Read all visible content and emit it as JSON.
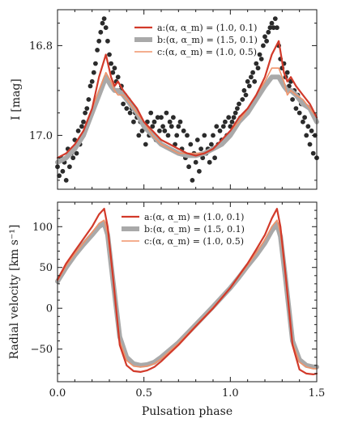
{
  "chart_data": [
    {
      "type": "scatter",
      "panel": "top",
      "xlabel": "",
      "ylabel": "I [mag]",
      "y_inverted": true,
      "xlim": [
        0.0,
        1.5
      ],
      "ylim": [
        16.72,
        17.12
      ],
      "x_ticks": [
        0.0,
        0.5,
        1.0,
        1.5
      ],
      "y_ticks": [
        16.8,
        17.0
      ],
      "y_tick_labels": [
        "16.8",
        "17.0"
      ],
      "legend_position": "top-right",
      "colors": {
        "a": "#d23a2a",
        "b": "#a9a9a9",
        "c": "#f0936a",
        "points": "#2b2b2b"
      },
      "observations": {
        "name": "",
        "x": [
          0.0,
          0.01,
          0.02,
          0.03,
          0.04,
          0.05,
          0.06,
          0.07,
          0.08,
          0.09,
          0.1,
          0.11,
          0.12,
          0.13,
          0.14,
          0.15,
          0.16,
          0.17,
          0.18,
          0.19,
          0.2,
          0.21,
          0.22,
          0.23,
          0.24,
          0.25,
          0.26,
          0.27,
          0.28,
          0.29,
          0.3,
          0.31,
          0.32,
          0.33,
          0.34,
          0.35,
          0.36,
          0.37,
          0.38,
          0.39,
          0.4,
          0.41,
          0.42,
          0.43,
          0.44,
          0.45,
          0.46,
          0.47,
          0.48,
          0.49,
          0.5,
          0.51,
          0.52,
          0.53,
          0.54,
          0.55,
          0.56,
          0.57,
          0.58,
          0.59,
          0.6,
          0.61,
          0.62,
          0.63,
          0.64,
          0.65,
          0.66,
          0.67,
          0.68,
          0.69,
          0.7,
          0.71,
          0.72,
          0.73,
          0.74,
          0.75,
          0.76,
          0.77,
          0.78,
          0.79,
          0.8,
          0.81,
          0.82,
          0.83,
          0.84,
          0.85,
          0.86,
          0.87,
          0.88,
          0.89,
          0.9,
          0.91,
          0.92,
          0.93,
          0.94,
          0.95,
          0.96,
          0.97,
          0.98,
          0.99,
          1.0,
          1.01,
          1.02,
          1.03,
          1.04,
          1.05,
          1.06,
          1.07,
          1.08,
          1.09,
          1.1,
          1.11,
          1.12,
          1.13,
          1.14,
          1.15,
          1.16,
          1.17,
          1.18,
          1.19,
          1.2,
          1.21,
          1.22,
          1.23,
          1.24,
          1.25,
          1.26,
          1.27,
          1.28,
          1.29,
          1.3,
          1.31,
          1.32,
          1.33,
          1.34,
          1.35,
          1.36,
          1.37,
          1.38,
          1.39,
          1.4,
          1.41,
          1.42,
          1.43,
          1.44,
          1.45,
          1.46,
          1.47,
          1.48,
          1.49,
          1.5
        ],
        "y": [
          17.07,
          17.09,
          17.05,
          17.08,
          17.06,
          17.1,
          17.03,
          17.07,
          17.04,
          17.05,
          17.01,
          17.04,
          16.99,
          17.02,
          16.98,
          16.97,
          16.95,
          16.94,
          16.92,
          16.89,
          16.88,
          16.86,
          16.84,
          16.81,
          16.79,
          16.77,
          16.75,
          16.74,
          16.76,
          16.79,
          16.82,
          16.84,
          16.86,
          16.85,
          16.88,
          16.87,
          16.9,
          16.89,
          16.93,
          16.91,
          16.94,
          16.92,
          16.95,
          16.94,
          16.97,
          16.95,
          16.96,
          17.0,
          16.97,
          16.99,
          16.98,
          17.02,
          16.97,
          17.0,
          16.95,
          16.98,
          16.97,
          17.01,
          16.96,
          16.99,
          16.96,
          16.98,
          16.99,
          16.95,
          17.0,
          16.97,
          16.98,
          16.96,
          17.02,
          17.0,
          16.98,
          16.97,
          17.03,
          16.99,
          17.05,
          17.0,
          17.07,
          17.02,
          17.1,
          17.04,
          17.06,
          17.01,
          17.08,
          17.03,
          17.05,
          17.0,
          17.04,
          17.03,
          17.06,
          17.02,
          17.0,
          17.05,
          16.98,
          17.02,
          16.99,
          17.01,
          16.98,
          16.97,
          17.0,
          16.96,
          16.98,
          16.97,
          16.96,
          16.95,
          16.94,
          16.93,
          16.96,
          16.92,
          16.9,
          16.91,
          16.88,
          16.89,
          16.87,
          16.86,
          16.88,
          16.84,
          16.85,
          16.82,
          16.83,
          16.8,
          16.78,
          16.79,
          16.77,
          16.76,
          16.75,
          16.76,
          16.74,
          16.76,
          16.8,
          16.83,
          16.85,
          16.84,
          16.87,
          16.86,
          16.89,
          16.88,
          16.92,
          16.9,
          16.94,
          16.91,
          16.95,
          16.93,
          16.97,
          16.96,
          17.0,
          16.98,
          17.02,
          16.99,
          17.04,
          17.0,
          17.05
        ]
      },
      "series": [
        {
          "name": "a:(α, α_m) = (1.0, 0.1)",
          "color": "#d23a2a",
          "x": [
            0.0,
            0.05,
            0.1,
            0.15,
            0.2,
            0.24,
            0.28,
            0.31,
            0.33,
            0.35,
            0.38,
            0.42,
            0.46,
            0.5,
            0.55,
            0.6,
            0.65,
            0.7,
            0.75,
            0.8,
            0.85,
            0.9,
            0.95,
            1.0,
            1.05,
            1.1,
            1.15,
            1.2,
            1.24,
            1.28,
            1.31,
            1.33,
            1.35,
            1.38,
            1.42,
            1.46,
            1.5
          ],
          "y": [
            17.05,
            17.04,
            17.02,
            16.99,
            16.94,
            16.87,
            16.82,
            16.87,
            16.89,
            16.88,
            16.9,
            16.92,
            16.94,
            16.97,
            16.99,
            17.01,
            17.02,
            17.03,
            17.04,
            17.045,
            17.04,
            17.03,
            17.01,
            16.99,
            16.96,
            16.94,
            16.91,
            16.87,
            16.82,
            16.79,
            16.86,
            16.88,
            16.87,
            16.89,
            16.91,
            16.93,
            16.96
          ]
        },
        {
          "name": "b:(α, α_m) = (1.5, 0.1)",
          "color": "#a9a9a9",
          "x": [
            0.0,
            0.05,
            0.1,
            0.15,
            0.2,
            0.24,
            0.28,
            0.31,
            0.33,
            0.35,
            0.38,
            0.42,
            0.46,
            0.5,
            0.55,
            0.6,
            0.65,
            0.7,
            0.75,
            0.8,
            0.85,
            0.9,
            0.95,
            1.0,
            1.05,
            1.1,
            1.15,
            1.2,
            1.24,
            1.28,
            1.31,
            1.33,
            1.35,
            1.38,
            1.42,
            1.46,
            1.5
          ],
          "y": [
            17.06,
            17.05,
            17.03,
            17.0,
            16.95,
            16.91,
            16.87,
            16.89,
            16.9,
            16.9,
            16.91,
            16.93,
            16.95,
            16.98,
            17.0,
            17.02,
            17.03,
            17.04,
            17.045,
            17.045,
            17.04,
            17.03,
            17.02,
            17.0,
            16.97,
            16.95,
            16.92,
            16.89,
            16.87,
            16.87,
            16.89,
            16.9,
            16.9,
            16.91,
            16.93,
            16.94,
            16.97
          ]
        },
        {
          "name": "c:(α, α_m) = (1.0, 0.5)",
          "color": "#f0936a",
          "x": [
            0.0,
            0.05,
            0.1,
            0.15,
            0.2,
            0.24,
            0.28,
            0.31,
            0.33,
            0.35,
            0.38,
            0.42,
            0.46,
            0.5,
            0.55,
            0.6,
            0.65,
            0.7,
            0.75,
            0.8,
            0.85,
            0.9,
            0.95,
            1.0,
            1.05,
            1.1,
            1.15,
            1.2,
            1.24,
            1.28,
            1.31,
            1.33,
            1.35,
            1.38,
            1.42,
            1.46,
            1.5
          ],
          "y": [
            17.05,
            17.04,
            17.02,
            16.99,
            16.94,
            16.9,
            16.86,
            16.88,
            16.9,
            16.91,
            16.91,
            16.93,
            16.95,
            16.97,
            17.0,
            17.02,
            17.03,
            17.04,
            17.04,
            17.04,
            17.04,
            17.03,
            17.01,
            16.99,
            16.97,
            16.94,
            16.91,
            16.88,
            16.85,
            16.85,
            16.88,
            16.91,
            16.9,
            16.91,
            16.92,
            16.94,
            16.96
          ]
        }
      ]
    },
    {
      "type": "line",
      "panel": "bottom",
      "xlabel": "Pulsation phase",
      "ylabel": "Radial velocity [km s⁻¹]",
      "xlim": [
        0.0,
        1.5
      ],
      "ylim": [
        -90,
        130
      ],
      "x_ticks": [
        0.0,
        0.5,
        1.0,
        1.5
      ],
      "x_tick_labels": [
        "0.0",
        "0.5",
        "1.0",
        "1.5"
      ],
      "y_ticks": [
        -50,
        0,
        50,
        100
      ],
      "y_tick_labels": [
        "−50",
        "0",
        "50",
        "100"
      ],
      "legend_position": "top-right",
      "series": [
        {
          "name": "a:(α, α_m) = (1.0, 0.1)",
          "color": "#d23a2a",
          "x": [
            0.0,
            0.05,
            0.1,
            0.15,
            0.2,
            0.24,
            0.27,
            0.29,
            0.32,
            0.36,
            0.4,
            0.44,
            0.48,
            0.52,
            0.56,
            0.6,
            0.7,
            0.8,
            0.9,
            1.0,
            1.05,
            1.1,
            1.15,
            1.2,
            1.24,
            1.27,
            1.29,
            1.32,
            1.36,
            1.4,
            1.44,
            1.48,
            1.5
          ],
          "y": [
            35,
            55,
            70,
            85,
            100,
            115,
            122,
            100,
            40,
            -45,
            -70,
            -77,
            -78,
            -76,
            -72,
            -65,
            -45,
            -22,
            0,
            25,
            40,
            55,
            72,
            90,
            110,
            122,
            100,
            40,
            -45,
            -75,
            -80,
            -81,
            -80
          ]
        },
        {
          "name": "b:(α, α_m) = (1.5, 0.1)",
          "color": "#a9a9a9",
          "x": [
            0.0,
            0.05,
            0.1,
            0.15,
            0.2,
            0.24,
            0.27,
            0.29,
            0.32,
            0.36,
            0.4,
            0.44,
            0.48,
            0.52,
            0.56,
            0.6,
            0.7,
            0.8,
            0.9,
            1.0,
            1.05,
            1.1,
            1.15,
            1.2,
            1.24,
            1.27,
            1.29,
            1.32,
            1.36,
            1.4,
            1.44,
            1.48,
            1.5
          ],
          "y": [
            33,
            50,
            65,
            78,
            90,
            100,
            104,
            90,
            35,
            -35,
            -60,
            -68,
            -70,
            -69,
            -66,
            -60,
            -42,
            -20,
            2,
            25,
            38,
            52,
            65,
            80,
            95,
            103,
            88,
            35,
            -40,
            -63,
            -70,
            -72,
            -72
          ]
        },
        {
          "name": "c:(α, α_m) = (1.0, 0.5)",
          "color": "#f0936a",
          "x": [
            0.0,
            0.05,
            0.1,
            0.15,
            0.2,
            0.24,
            0.27,
            0.29,
            0.32,
            0.36,
            0.4,
            0.44,
            0.48,
            0.52,
            0.56,
            0.6,
            0.7,
            0.8,
            0.9,
            1.0,
            1.05,
            1.1,
            1.15,
            1.2,
            1.24,
            1.27,
            1.29,
            1.32,
            1.36,
            1.4,
            1.44,
            1.48,
            1.5
          ],
          "y": [
            34,
            52,
            67,
            80,
            93,
            104,
            108,
            92,
            38,
            -40,
            -64,
            -71,
            -72,
            -71,
            -68,
            -62,
            -43,
            -21,
            1,
            25,
            39,
            53,
            68,
            84,
            100,
            108,
            92,
            38,
            -42,
            -66,
            -72,
            -74,
            -74
          ]
        }
      ]
    }
  ],
  "legend": {
    "a_label": "a:(α, α_m) = (1.0, 0.1)",
    "b_label": "b:(α, α_m) = (1.5, 0.1)",
    "c_label": "c:(α, α_m) = (1.0, 0.5)"
  }
}
